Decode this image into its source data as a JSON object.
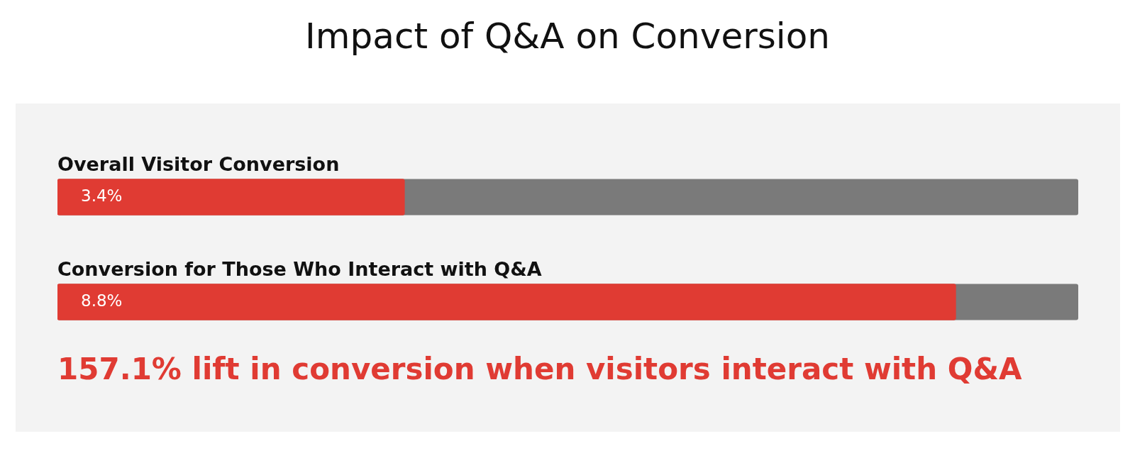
{
  "chart_data": {
    "type": "bar",
    "orientation": "horizontal",
    "title": "Impact of Q&A on Conversion",
    "categories": [
      "Overall Visitor Conversion",
      "Conversion for Those Who Interact with Q&A"
    ],
    "values": [
      3.4,
      8.8
    ],
    "value_labels": [
      "3.4%",
      "8.8%"
    ],
    "color": "#e03b33",
    "xlim": [
      0,
      10
    ],
    "annotations": [
      "157.1% lift in conversion when visitors interact with Q&A"
    ]
  }
}
